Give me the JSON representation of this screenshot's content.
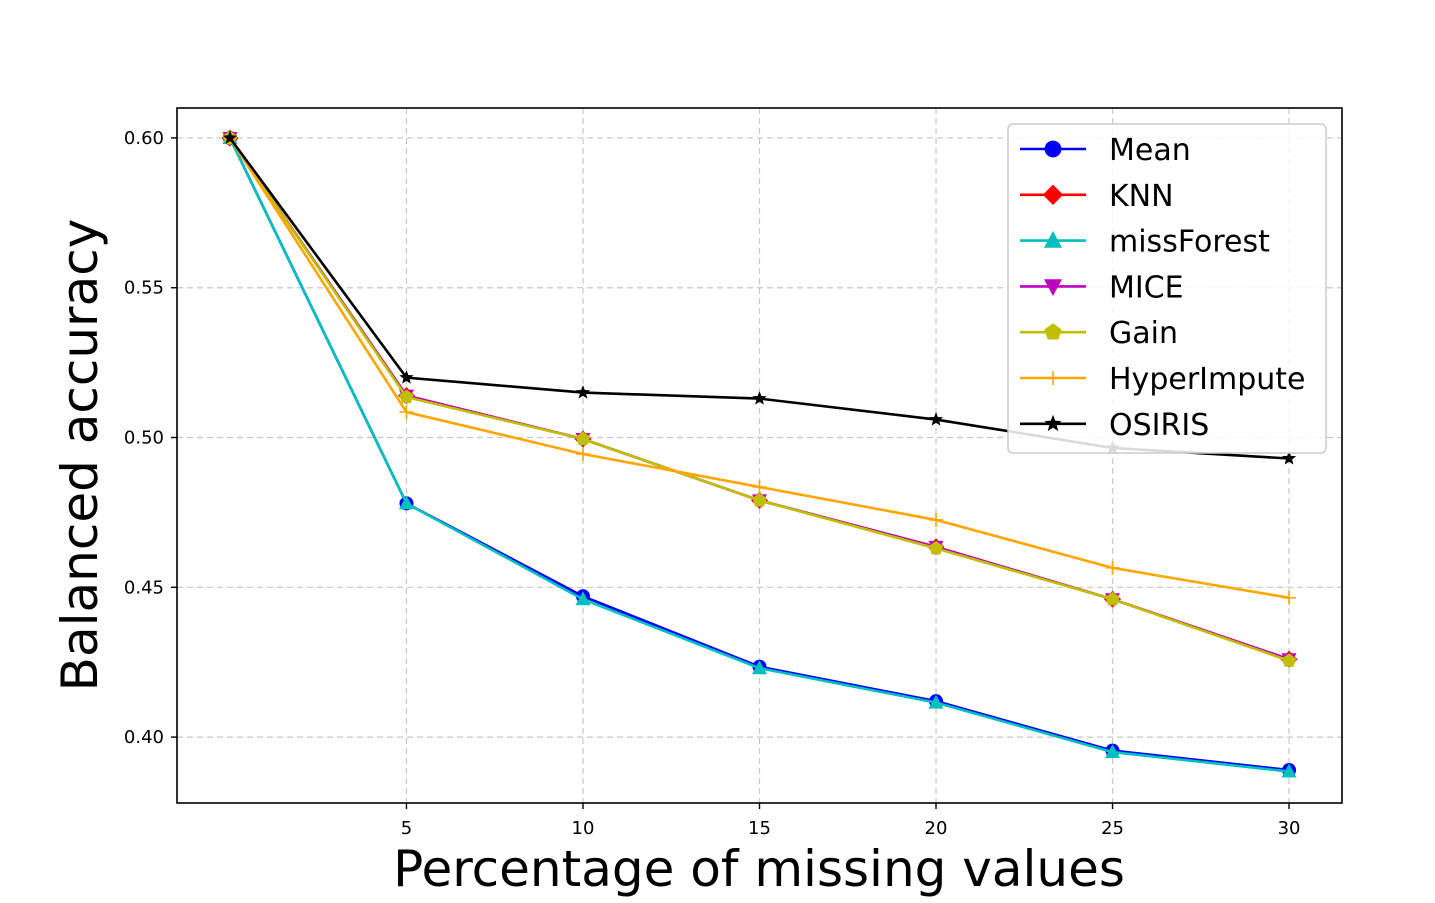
{
  "chart_data": {
    "type": "line",
    "title": "",
    "xlabel": "Percentage of missing values",
    "ylabel": "Balanced accuracy",
    "x": [
      0,
      5,
      10,
      15,
      20,
      25,
      30
    ],
    "xticks": [
      5,
      10,
      15,
      20,
      25,
      30
    ],
    "xtick_labels": [
      "5",
      "10",
      "15",
      "20",
      "25",
      "30"
    ],
    "yticks": [
      0.4,
      0.45,
      0.5,
      0.55,
      0.6
    ],
    "ytick_labels": [
      "0.40",
      "0.45",
      "0.50",
      "0.55",
      "0.60"
    ],
    "xlim": [
      -1.5,
      31.5
    ],
    "ylim": [
      0.378,
      0.61
    ],
    "grid": true,
    "legend_position": "top-right",
    "series": [
      {
        "name": "Mean",
        "color": "#0000ff",
        "marker": "circle",
        "values": [
          0.6,
          0.478,
          0.447,
          0.4235,
          0.412,
          0.3955,
          0.389
        ]
      },
      {
        "name": "KNN",
        "color": "#ff0000",
        "marker": "diamond",
        "values": [
          0.6,
          0.514,
          0.4995,
          0.479,
          0.4635,
          0.446,
          0.426
        ]
      },
      {
        "name": "missForest",
        "color": "#00bfbf",
        "marker": "triangle-up",
        "values": [
          0.6,
          0.478,
          0.446,
          0.423,
          0.4115,
          0.395,
          0.3885
        ]
      },
      {
        "name": "MICE",
        "color": "#bf00bf",
        "marker": "triangle-down",
        "values": [
          0.6,
          0.514,
          0.4995,
          0.479,
          0.4635,
          0.446,
          0.426
        ]
      },
      {
        "name": "Gain",
        "color": "#bfbf00",
        "marker": "pentagon",
        "values": [
          0.6,
          0.5135,
          0.4995,
          0.479,
          0.463,
          0.446,
          0.4255
        ]
      },
      {
        "name": "HyperImpute",
        "color": "#ffa500",
        "marker": "plus",
        "values": [
          0.6,
          0.5085,
          0.4945,
          0.4835,
          0.4725,
          0.4565,
          0.4465
        ]
      },
      {
        "name": "OSIRIS",
        "color": "#000000",
        "marker": "star",
        "values": [
          0.6,
          0.52,
          0.515,
          0.513,
          0.506,
          0.4965,
          0.493
        ]
      }
    ]
  }
}
